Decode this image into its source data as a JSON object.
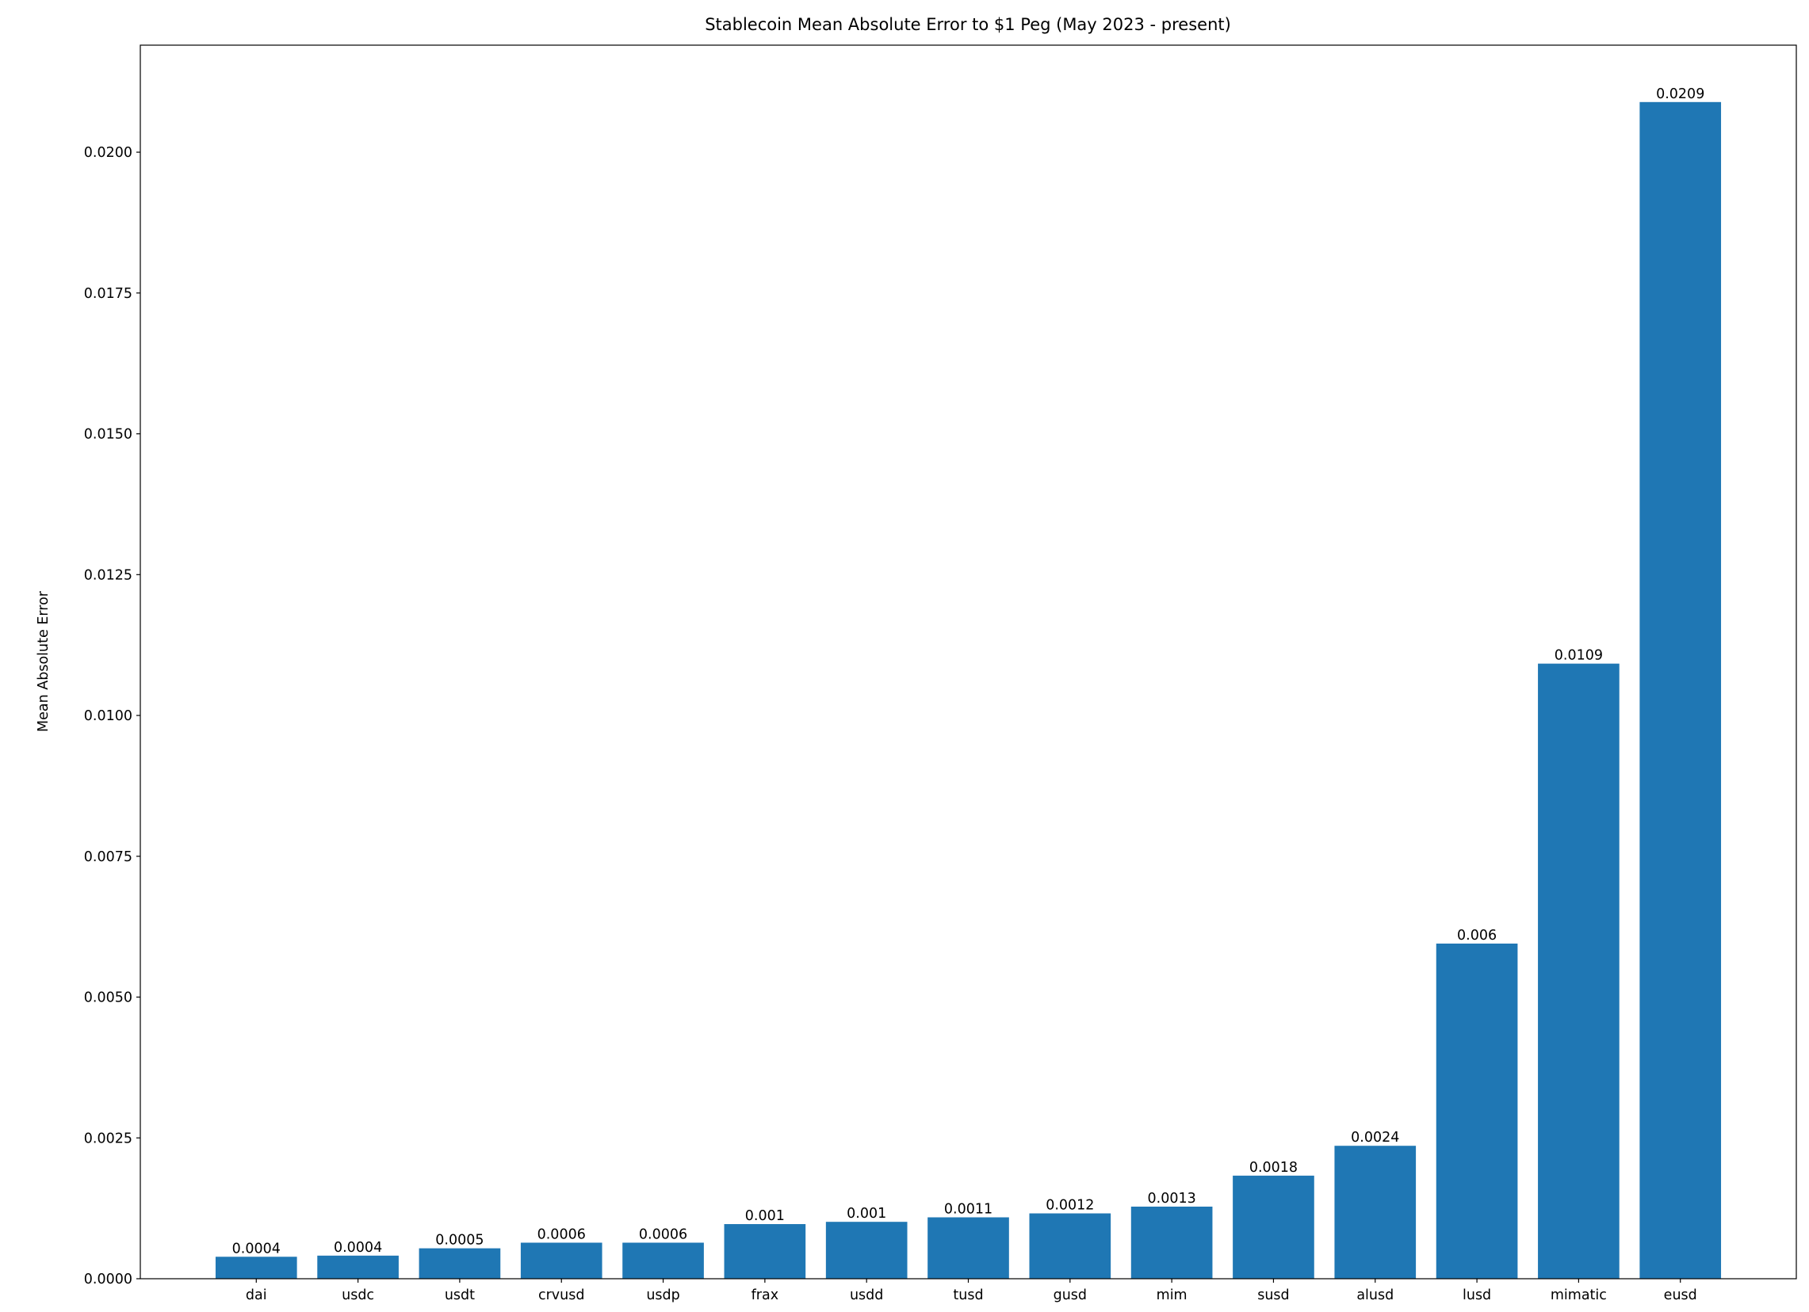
{
  "chart_data": {
    "type": "bar",
    "title": "Stablecoin Mean Absolute Error to $1 Peg (May 2023 - present)",
    "y_label": "Mean Absolute Error",
    "categories": [
      "dai",
      "usdc",
      "usdt",
      "crvusd",
      "usdp",
      "frax",
      "usdd",
      "tusd",
      "gusd",
      "mim",
      "susd",
      "alusd",
      "lusd",
      "mimatic",
      "eusd"
    ],
    "values": [
      0.00039,
      0.00041,
      0.00054,
      0.00064,
      0.00064,
      0.00097,
      0.00101,
      0.00109,
      0.00116,
      0.00128,
      0.00183,
      0.00236,
      0.00595,
      0.01092,
      0.02089
    ],
    "value_labels": [
      "0.0004",
      "0.0004",
      "0.0005",
      "0.0006",
      "0.0006",
      "0.001",
      "0.001",
      "0.0011",
      "0.0012",
      "0.0013",
      "0.0018",
      "0.0024",
      "0.006",
      "0.0109",
      "0.0209"
    ],
    "color": "#1f77b4",
    "ylim": [
      0,
      0.0219
    ],
    "yticks": [
      {
        "value": 0,
        "label": "0.0000"
      },
      {
        "value": 0.0025,
        "label": "0.0025"
      },
      {
        "value": 0.005,
        "label": "0.0050"
      },
      {
        "value": 0.0075,
        "label": "0.0075"
      },
      {
        "value": 0.01,
        "label": "0.0100"
      },
      {
        "value": 0.0125,
        "label": "0.0125"
      },
      {
        "value": 0.015,
        "label": "0.0150"
      },
      {
        "value": 0.0175,
        "label": "0.0175"
      },
      {
        "value": 0.02,
        "label": "0.0200"
      }
    ],
    "grid": false
  }
}
